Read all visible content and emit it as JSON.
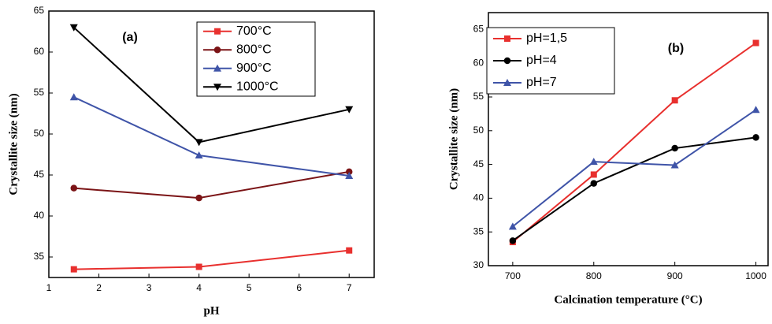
{
  "chart_data": [
    {
      "type": "line",
      "annotation": "(a)",
      "x_label": "pH",
      "y_label": "Crystallite size (nm)",
      "x": [
        1.5,
        4,
        7
      ],
      "xlim": [
        1,
        7.5
      ],
      "xticks": [
        1,
        2,
        3,
        4,
        5,
        6,
        7
      ],
      "ylim": [
        32.5,
        65
      ],
      "yticks": [
        35,
        40,
        45,
        50,
        55,
        60,
        65
      ],
      "series": [
        {
          "name": "700°C",
          "color": "#e8302e",
          "marker": "square",
          "values": [
            33.5,
            33.8,
            35.8
          ]
        },
        {
          "name": "800°C",
          "color": "#7b1416",
          "marker": "circle",
          "values": [
            43.4,
            42.2,
            45.4
          ]
        },
        {
          "name": "900°C",
          "color": "#3f54a8",
          "marker": "triangle-up",
          "values": [
            54.5,
            47.4,
            44.9
          ]
        },
        {
          "name": "1000°C",
          "color": "#000000",
          "marker": "triangle-down",
          "values": [
            63.0,
            49.0,
            53.0
          ]
        }
      ]
    },
    {
      "type": "line",
      "annotation": "(b)",
      "x_label": "Calcination temperature  (°C)",
      "y_label": "Crystallite size (nm)",
      "x": [
        700,
        800,
        900,
        1000
      ],
      "xlim": [
        670,
        1015
      ],
      "xticks": [
        700,
        800,
        900,
        1000
      ],
      "ylim": [
        30,
        67.5
      ],
      "yticks": [
        30,
        35,
        40,
        45,
        50,
        55,
        60,
        65
      ],
      "series": [
        {
          "name": "pH=1,5",
          "color": "#e8302e",
          "marker": "square",
          "values": [
            33.5,
            43.5,
            54.5,
            63.0
          ]
        },
        {
          "name": "pH=4",
          "color": "#000000",
          "marker": "circle",
          "values": [
            33.7,
            42.2,
            47.4,
            49.0
          ]
        },
        {
          "name": "pH=7",
          "color": "#3f54a8",
          "marker": "triangle-up",
          "values": [
            35.8,
            45.4,
            44.9,
            53.1
          ]
        }
      ]
    }
  ]
}
